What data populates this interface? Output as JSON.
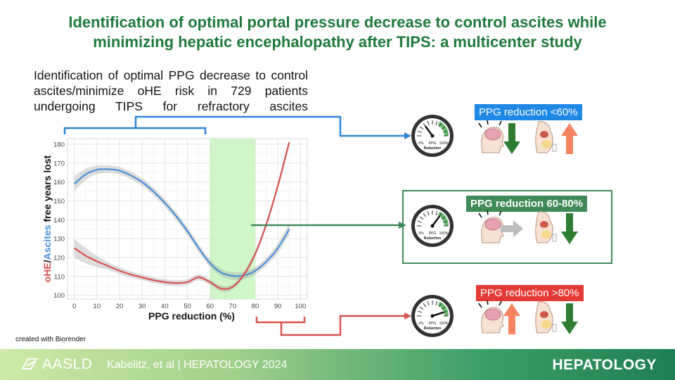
{
  "title_line1": "Identification of optimal portal pressure decrease to control ascites while",
  "title_line2": "minimizing hepatic encephalopathy after TIPS: a multicenter study",
  "subtitle": "Identification of optimal PPG decrease to control ascites/minimize oHE risk in 729 patients undergoing TIPS for refractory ascites",
  "credit": "created with Biorender",
  "footer": {
    "society": "AASLD",
    "citation": "Kabelitz, et al  |  HEPATOLOGY 2024",
    "journal": "HEPATOLOGY"
  },
  "gauge": {
    "min_label": "0%",
    "max_label": "100%",
    "center_label": "PPG",
    "caption": "Reduction"
  },
  "panels": [
    {
      "label": "PPG reduction <60%",
      "gauge_fraction": 0.3,
      "brain_arrow": "down",
      "brain_color": "#2e7d32",
      "ascites_arrow": "up",
      "ascites_color": "#f4845f"
    },
    {
      "label": "PPG reduction 60-80%",
      "gauge_fraction": 0.7,
      "brain_arrow": "right",
      "brain_color": "#bdbdbd",
      "ascites_arrow": "down",
      "ascites_color": "#2e7d32"
    },
    {
      "label": "PPG reduction >80%",
      "gauge_fraction": 0.9,
      "brain_arrow": "up",
      "brain_color": "#f4845f",
      "ascites_arrow": "down",
      "ascites_color": "#2e7d32"
    }
  ],
  "colors": {
    "title_green": "#1f7a3c",
    "blue": "#4a90d9",
    "red": "#d9534f",
    "band": "#c8f5c0",
    "panel_green": "#3f8a57"
  },
  "chart_data": {
    "type": "line",
    "xlabel": "PPG reduction (%)",
    "ylabel_parts": [
      "oHE",
      "/",
      "Ascites",
      " free years lost"
    ],
    "xlim": [
      -3,
      103
    ],
    "ylim": [
      98,
      183
    ],
    "xticks": [
      0,
      10,
      20,
      30,
      40,
      50,
      60,
      70,
      80,
      90,
      100
    ],
    "yticks": [
      100,
      110,
      120,
      130,
      140,
      150,
      160,
      170,
      180
    ],
    "grid": true,
    "highlight_band": [
      60,
      80
    ],
    "series": [
      {
        "key": "ascites",
        "color": "#4a90d9",
        "x": [
          0,
          5,
          10,
          15,
          20,
          25,
          30,
          35,
          40,
          45,
          50,
          55,
          60,
          65,
          70,
          75,
          80,
          85,
          90,
          95
        ],
        "y": [
          159,
          164,
          166.5,
          166.8,
          166,
          163.5,
          160,
          155,
          149,
          142,
          134,
          125,
          117,
          112,
          110.3,
          110.5,
          113,
          118,
          125,
          135
        ],
        "ci_width": [
          4,
          3,
          2.3,
          2,
          2,
          2,
          2,
          2,
          2,
          2,
          2,
          2,
          2,
          2,
          2,
          2,
          2,
          2,
          2.5,
          3
        ]
      },
      {
        "key": "ohe",
        "color": "#d9534f",
        "x": [
          0,
          5,
          10,
          15,
          20,
          25,
          30,
          35,
          40,
          45,
          50,
          55,
          60,
          65,
          70,
          75,
          80,
          85,
          90,
          95
        ],
        "y": [
          125,
          121,
          118,
          115.5,
          113,
          111,
          109.5,
          108,
          107,
          106.5,
          107,
          109.5,
          107,
          103.5,
          104.5,
          111,
          122,
          138,
          158,
          181
        ],
        "ci_width": [
          5,
          4,
          3,
          2,
          1.8,
          1.6,
          1.5,
          1.5,
          1.5,
          1.5,
          1.5,
          1.5,
          1.5,
          1.5,
          1.5,
          1.5,
          1.5,
          1.5,
          1.5,
          2
        ]
      }
    ]
  }
}
